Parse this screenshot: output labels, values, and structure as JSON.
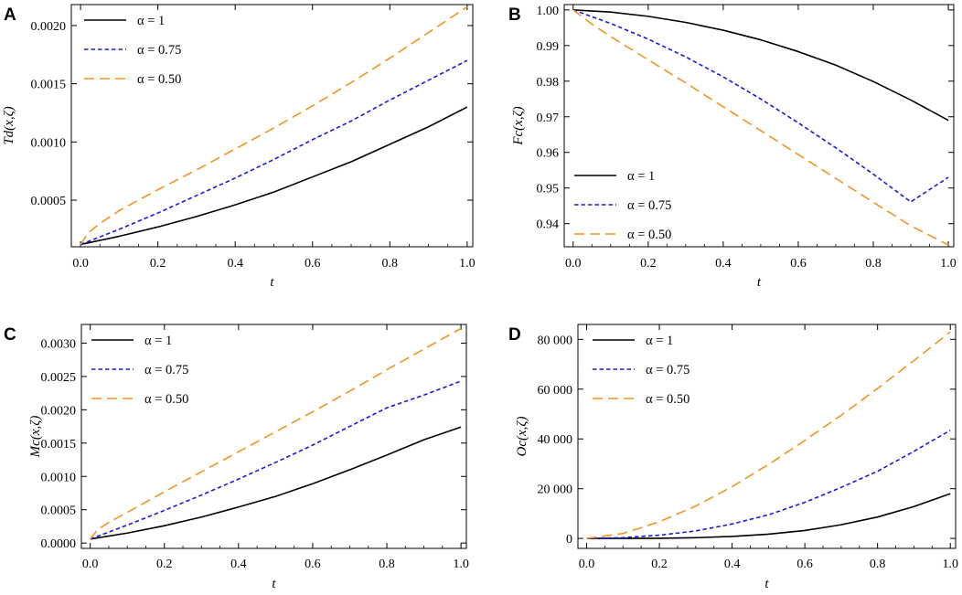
{
  "colors": {
    "alpha1": "#000000",
    "alpha075": "#1a1adb",
    "alpha050": "#f39322"
  },
  "chart_data": [
    {
      "panel": "A",
      "type": "line",
      "xlabel": "t",
      "ylabel": "Td(x,ζ)",
      "xlim": [
        0,
        1
      ],
      "ylim": [
        0.0001,
        0.00218
      ],
      "xticks": [
        "0.0",
        "0.2",
        "0.4",
        "0.6",
        "0.8",
        "1.0"
      ],
      "yticks": [
        {
          "v": 0.0005,
          "label": "0.0005"
        },
        {
          "v": 0.001,
          "label": "0.0010"
        },
        {
          "v": 0.0015,
          "label": "0.0015"
        },
        {
          "v": 0.002,
          "label": "0.0020"
        }
      ],
      "legend_position": "top-left",
      "series": [
        {
          "name": "α = 1",
          "style": "solid",
          "x": [
            0,
            0.1,
            0.2,
            0.3,
            0.4,
            0.5,
            0.6,
            0.7,
            0.8,
            0.9,
            1.0
          ],
          "y": [
            0.00012,
            0.00019,
            0.00027,
            0.00036,
            0.00046,
            0.00057,
            0.0007,
            0.00083,
            0.00098,
            0.00113,
            0.0013
          ]
        },
        {
          "name": "α = 0.75",
          "style": "dashed",
          "x": [
            0,
            0.1,
            0.2,
            0.3,
            0.4,
            0.5,
            0.6,
            0.7,
            0.8,
            0.9,
            1.0
          ],
          "y": [
            0.00012,
            0.00025,
            0.00039,
            0.00054,
            0.00069,
            0.00085,
            0.00102,
            0.00118,
            0.00136,
            0.00153,
            0.0017
          ]
        },
        {
          "name": "α = 0.50",
          "style": "longdash",
          "x": [
            0,
            0.02,
            0.05,
            0.1,
            0.2,
            0.3,
            0.4,
            0.5,
            0.6,
            0.7,
            0.8,
            0.9,
            1.0
          ],
          "y": [
            0.00012,
            0.00022,
            0.0003,
            0.00041,
            0.00059,
            0.00076,
            0.00094,
            0.00112,
            0.00131,
            0.00151,
            0.00172,
            0.00194,
            0.00216
          ]
        }
      ]
    },
    {
      "panel": "B",
      "type": "line",
      "xlabel": "t",
      "ylabel": "Fc(x,ζ)",
      "xlim": [
        0,
        1
      ],
      "ylim": [
        0.9335,
        1.0015
      ],
      "xticks": [
        "0.0",
        "0.2",
        "0.4",
        "0.6",
        "0.8",
        "1.0"
      ],
      "yticks": [
        {
          "v": 0.94,
          "label": "0.94"
        },
        {
          "v": 0.95,
          "label": "0.95"
        },
        {
          "v": 0.96,
          "label": "0.96"
        },
        {
          "v": 0.97,
          "label": "0.97"
        },
        {
          "v": 0.98,
          "label": "0.98"
        },
        {
          "v": 0.99,
          "label": "0.99"
        },
        {
          "v": 1.0,
          "label": "1.00"
        }
      ],
      "legend_position": "bottom-left",
      "series": [
        {
          "name": "α = 1",
          "style": "solid",
          "x": [
            0,
            0.1,
            0.2,
            0.3,
            0.4,
            0.5,
            0.6,
            0.7,
            0.8,
            0.9,
            1.0
          ],
          "y": [
            1.0,
            0.9994,
            0.9982,
            0.9965,
            0.9943,
            0.9916,
            0.9883,
            0.9845,
            0.9799,
            0.9747,
            0.969
          ]
        },
        {
          "name": "α = 0.75",
          "style": "dashed",
          "x": [
            0,
            0.1,
            0.2,
            0.3,
            0.4,
            0.5,
            0.6,
            0.7,
            0.8,
            0.9,
            1.0
          ],
          "y": [
            1.0,
            0.9962,
            0.9918,
            0.9868,
            0.9812,
            0.975,
            0.9683,
            0.9613,
            0.9539,
            0.9461,
            0.953
          ]
        },
        {
          "name": "α = 0.50",
          "style": "longdash",
          "x": [
            0,
            0.05,
            0.1,
            0.2,
            0.3,
            0.4,
            0.5,
            0.6,
            0.7,
            0.8,
            0.9,
            1.0
          ],
          "y": [
            1.0,
            0.996,
            0.9925,
            0.986,
            0.9795,
            0.9728,
            0.9661,
            0.9594,
            0.9527,
            0.946,
            0.9394,
            0.934
          ]
        }
      ]
    },
    {
      "panel": "C",
      "type": "line",
      "xlabel": "t",
      "ylabel": "Mc(x,ζ)",
      "xlim": [
        0,
        1
      ],
      "ylim": [
        -8e-05,
        0.00328
      ],
      "xticks": [
        "0.0",
        "0.2",
        "0.4",
        "0.6",
        "0.8",
        "1.0"
      ],
      "yticks": [
        {
          "v": 0.0,
          "label": "0.0000"
        },
        {
          "v": 0.0005,
          "label": "0.0005"
        },
        {
          "v": 0.001,
          "label": "0.0010"
        },
        {
          "v": 0.0015,
          "label": "0.0015"
        },
        {
          "v": 0.002,
          "label": "0.0020"
        },
        {
          "v": 0.0025,
          "label": "0.0025"
        },
        {
          "v": 0.003,
          "label": "0.0030"
        }
      ],
      "legend_position": "top-left",
      "series": [
        {
          "name": "α = 1",
          "style": "solid",
          "x": [
            0,
            0.1,
            0.2,
            0.3,
            0.4,
            0.5,
            0.6,
            0.7,
            0.8,
            0.9,
            1.0
          ],
          "y": [
            6e-05,
            0.00015,
            0.00026,
            0.00039,
            0.00054,
            0.0007,
            0.00089,
            0.0011,
            0.00132,
            0.00155,
            0.00174
          ]
        },
        {
          "name": "α = 0.75",
          "style": "dashed",
          "x": [
            0,
            0.1,
            0.2,
            0.3,
            0.4,
            0.5,
            0.6,
            0.7,
            0.8,
            0.9,
            1.0
          ],
          "y": [
            6e-05,
            0.00027,
            0.00049,
            0.00072,
            0.00096,
            0.00121,
            0.00147,
            0.00175,
            0.00203,
            0.00222,
            0.00243
          ]
        },
        {
          "name": "α = 0.50",
          "style": "longdash",
          "x": [
            0,
            0.02,
            0.05,
            0.1,
            0.2,
            0.3,
            0.4,
            0.5,
            0.6,
            0.7,
            0.8,
            0.9,
            1.0
          ],
          "y": [
            6e-05,
            0.0002,
            0.00031,
            0.00046,
            0.00077,
            0.00107,
            0.00137,
            0.00167,
            0.00197,
            0.00228,
            0.0026,
            0.00291,
            0.00322
          ]
        }
      ]
    },
    {
      "panel": "D",
      "type": "line",
      "xlabel": "t",
      "ylabel": "Oc(x,ζ)",
      "xlim": [
        0,
        1
      ],
      "ylim": [
        -4000,
        86000
      ],
      "xticks": [
        "0.0",
        "0.2",
        "0.4",
        "0.6",
        "0.8",
        "1.0"
      ],
      "yticks": [
        {
          "v": 0,
          "label": "0"
        },
        {
          "v": 20000,
          "label": "20 000"
        },
        {
          "v": 40000,
          "label": "40 000"
        },
        {
          "v": 60000,
          "label": "60 000"
        },
        {
          "v": 80000,
          "label": "80 000"
        }
      ],
      "legend_position": "top-left",
      "series": [
        {
          "name": "α = 1",
          "style": "solid",
          "x": [
            0,
            0.1,
            0.2,
            0.3,
            0.4,
            0.5,
            0.6,
            0.7,
            0.8,
            0.9,
            1.0
          ],
          "y": [
            0,
            5,
            80,
            300,
            800,
            1700,
            3200,
            5500,
            8600,
            12800,
            18000
          ]
        },
        {
          "name": "α = 0.75",
          "style": "dashed",
          "x": [
            0,
            0.1,
            0.2,
            0.3,
            0.4,
            0.5,
            0.6,
            0.7,
            0.8,
            0.9,
            1.0
          ],
          "y": [
            0,
            300,
            1300,
            3000,
            5800,
            9500,
            14500,
            20500,
            27000,
            35000,
            43500
          ]
        },
        {
          "name": "α = 0.50",
          "style": "longdash",
          "x": [
            0,
            0.1,
            0.2,
            0.3,
            0.4,
            0.5,
            0.6,
            0.7,
            0.8,
            0.9,
            1.0
          ],
          "y": [
            0,
            2000,
            6700,
            13000,
            20800,
            29700,
            39400,
            49500,
            60300,
            71500,
            83000
          ]
        }
      ]
    }
  ]
}
